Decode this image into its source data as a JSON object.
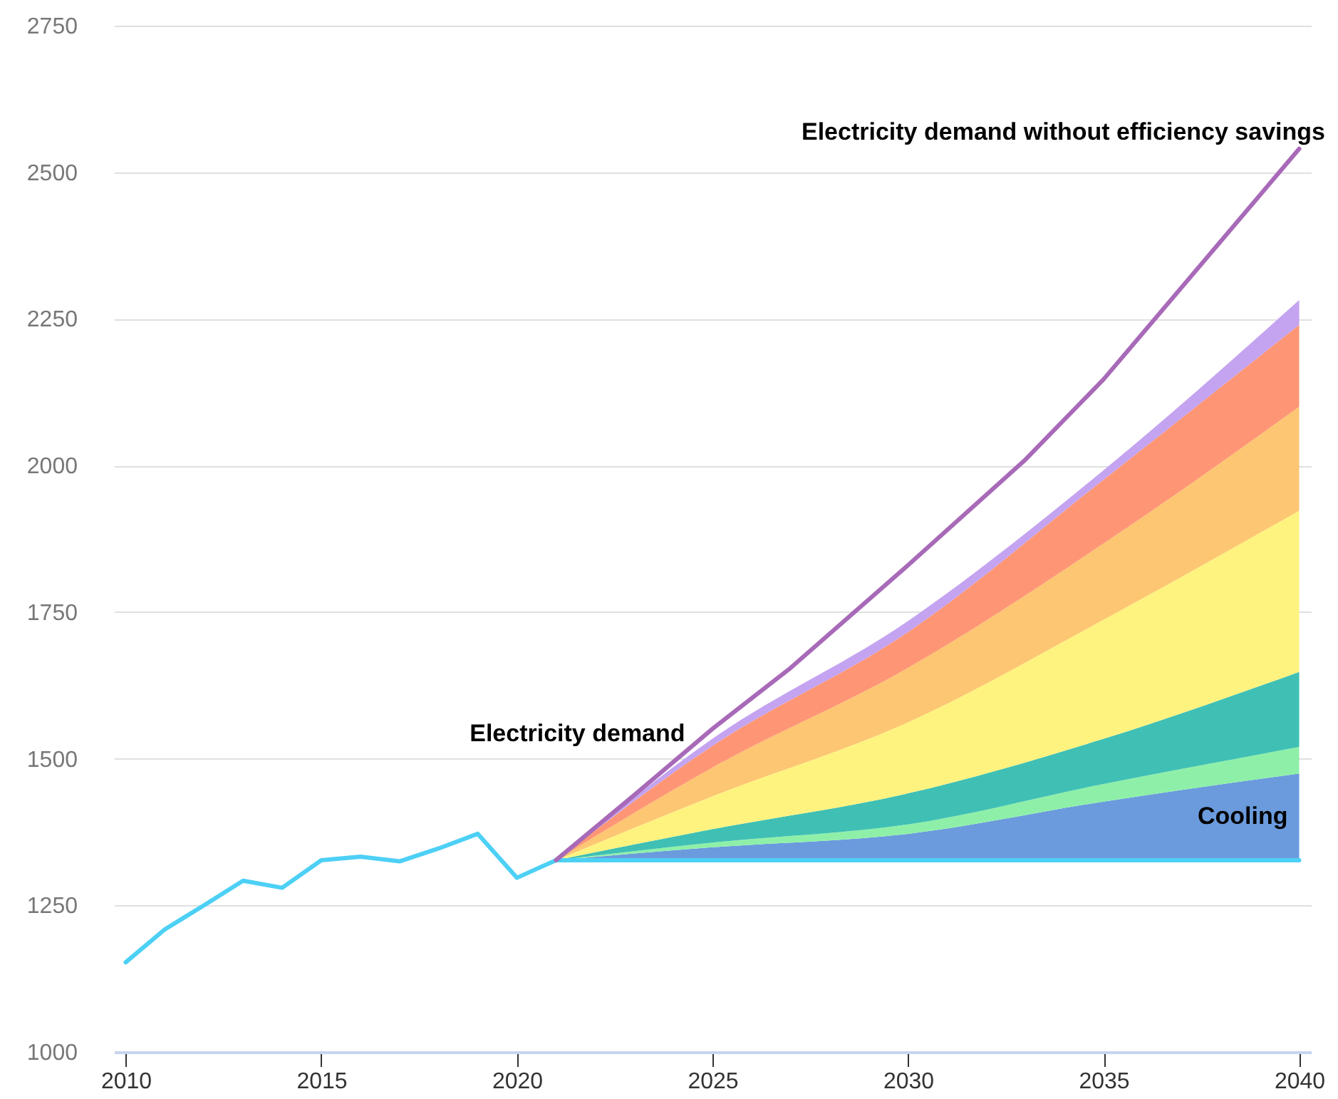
{
  "chart_data": {
    "type": "area",
    "xlim": [
      2009.7,
      2040.3
    ],
    "xticks": [
      2010,
      2015,
      2020,
      2025,
      2030,
      2035,
      2040
    ],
    "ylim": [
      1000,
      2750
    ],
    "yticks": [
      1000,
      1250,
      1500,
      1750,
      2000,
      2250,
      2500,
      2750
    ],
    "grid": "y",
    "annotations": [
      {
        "text": "Electricity demand",
        "x": 2024.3,
        "y": 1530
      },
      "Electricity demand without efficiency savings"
    ],
    "series": [
      {
        "type": "line",
        "color": "#4dd0f5",
        "x": [
          2010,
          2011,
          2012,
          2013,
          2014,
          2015,
          2016,
          2017,
          2018,
          2019,
          2020,
          2021,
          2040
        ],
        "values": [
          1153,
          1209,
          1250,
          1292,
          1280,
          1327,
          1333,
          1325,
          1347,
          1372,
          1297,
          1327,
          1327
        ]
      },
      {
        "name": "Cooling",
        "color": "#6b9bdd",
        "x": [
          2021,
          2025,
          2030,
          2035,
          2040
        ],
        "values": [
          1327,
          1349,
          1372,
          1427,
          1475
        ]
      },
      {
        "color": "#8ef0a8",
        "x": [
          2021,
          2025,
          2030,
          2035,
          2040
        ],
        "values": [
          1327,
          1357,
          1388,
          1457,
          1520
        ]
      },
      {
        "color": "#40c0b4",
        "x": [
          2021,
          2025,
          2030,
          2035,
          2040
        ],
        "values": [
          1327,
          1380,
          1441,
          1534,
          1648
        ]
      },
      {
        "color": "#fff380",
        "x": [
          2021,
          2025,
          2030,
          2035,
          2040
        ],
        "values": [
          1327,
          1436,
          1562,
          1737,
          1923
        ]
      },
      {
        "color": "#fdc672",
        "x": [
          2021,
          2025,
          2030,
          2035,
          2040
        ],
        "values": [
          1327,
          1485,
          1655,
          1867,
          2100
        ]
      },
      {
        "color": "#fe9676",
        "x": [
          2021,
          2025,
          2030,
          2035,
          2040
        ],
        "values": [
          1327,
          1522,
          1716,
          1976,
          2240
        ]
      },
      {
        "color": "#c4a3f0",
        "x": [
          2021,
          2025,
          2030,
          2035,
          2040
        ],
        "values": [
          1327,
          1534,
          1735,
          1992,
          2282
        ]
      },
      {
        "type": "line",
        "color": "#a86ab8",
        "x": [
          2021,
          2023,
          2025,
          2027,
          2030,
          2033,
          2035,
          2040
        ],
        "values": [
          1327,
          1438,
          1551,
          1655,
          1830,
          2010,
          2147,
          2540
        ]
      }
    ]
  }
}
